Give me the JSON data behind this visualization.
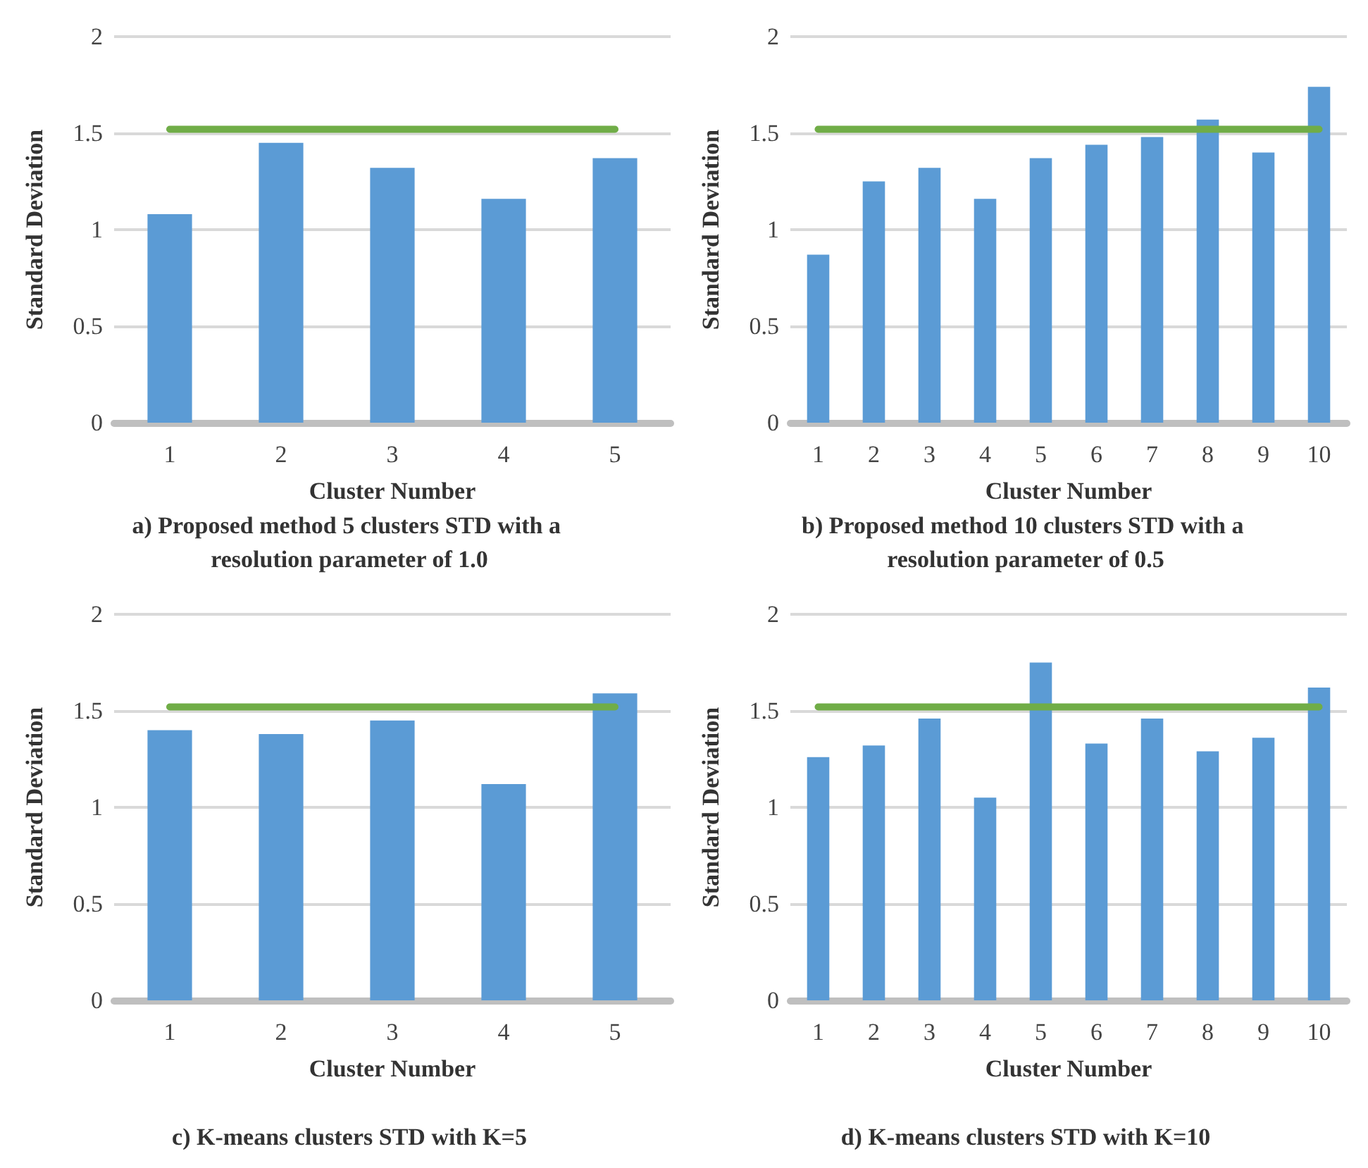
{
  "chart_data": [
    {
      "type": "bar",
      "title": "a) Proposed method 5 clusters STD with a resolution parameter of 1.0",
      "xlabel": "Cluster Number",
      "ylabel": "Standard Deviation",
      "categories": [
        "1",
        "2",
        "3",
        "4",
        "5"
      ],
      "series": [
        {
          "color": "#5b9bd5",
          "values": [
            1.08,
            1.45,
            1.32,
            1.16,
            1.37
          ]
        },
        {
          "type": "line",
          "color": "#70ad47",
          "values": [
            1.52,
            1.52,
            1.52,
            1.52,
            1.52
          ]
        }
      ],
      "ylim": [
        0,
        2
      ],
      "yticks": [
        0,
        0.5,
        1,
        1.5,
        2
      ],
      "grid": "y"
    },
    {
      "type": "bar",
      "title": "b) Proposed method 10 clusters STD with a resolution parameter of 0.5",
      "xlabel": "Cluster Number",
      "ylabel": "Standard Deviation",
      "categories": [
        "1",
        "2",
        "3",
        "4",
        "5",
        "6",
        "7",
        "8",
        "9",
        "10"
      ],
      "series": [
        {
          "color": "#5b9bd5",
          "values": [
            0.87,
            1.25,
            1.32,
            1.16,
            1.37,
            1.44,
            1.48,
            1.57,
            1.4,
            1.74
          ]
        },
        {
          "type": "line",
          "color": "#70ad47",
          "values": [
            1.52,
            1.52,
            1.52,
            1.52,
            1.52,
            1.52,
            1.52,
            1.52,
            1.52,
            1.52
          ]
        }
      ],
      "ylim": [
        0,
        2
      ],
      "yticks": [
        0,
        0.5,
        1,
        1.5,
        2
      ],
      "grid": "y"
    },
    {
      "type": "bar",
      "title": "c) K-means clusters STD with K=5",
      "xlabel": "Cluster Number",
      "ylabel": "Standard Deviation",
      "categories": [
        "1",
        "2",
        "3",
        "4",
        "5"
      ],
      "series": [
        {
          "color": "#5b9bd5",
          "values": [
            1.4,
            1.38,
            1.45,
            1.12,
            1.59
          ]
        },
        {
          "type": "line",
          "color": "#70ad47",
          "values": [
            1.52,
            1.52,
            1.52,
            1.52,
            1.52
          ]
        }
      ],
      "ylim": [
        0,
        2
      ],
      "yticks": [
        0,
        0.5,
        1,
        1.5,
        2
      ],
      "grid": "y"
    },
    {
      "type": "bar",
      "title": "d) K-means clusters STD with K=10",
      "xlabel": "Cluster Number",
      "ylabel": "Standard Deviation",
      "categories": [
        "1",
        "2",
        "3",
        "4",
        "5",
        "6",
        "7",
        "8",
        "9",
        "10"
      ],
      "series": [
        {
          "color": "#5b9bd5",
          "values": [
            1.26,
            1.32,
            1.46,
            1.05,
            1.75,
            1.33,
            1.46,
            1.29,
            1.36,
            1.62
          ]
        },
        {
          "type": "line",
          "color": "#70ad47",
          "values": [
            1.52,
            1.52,
            1.52,
            1.52,
            1.52,
            1.52,
            1.52,
            1.52,
            1.52,
            1.52
          ]
        }
      ],
      "ylim": [
        0,
        2
      ],
      "yticks": [
        0,
        0.5,
        1,
        1.5,
        2
      ],
      "grid": "y"
    }
  ]
}
